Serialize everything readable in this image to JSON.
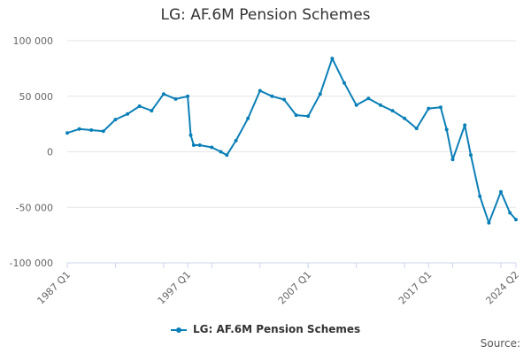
{
  "chart_data": {
    "type": "line",
    "title": "LG: AF.6M Pension Schemes",
    "xlabel": "",
    "ylabel": "",
    "ylim": [
      -100000,
      100000
    ],
    "y_ticks": [
      100000,
      50000,
      0,
      -50000,
      -100000
    ],
    "y_tick_labels": [
      "100 000",
      "50 000",
      "0",
      "-50 000",
      "-100 000"
    ],
    "x_ticks": [
      "1987 Q1",
      "1997 Q1",
      "2007 Q1",
      "2017 Q1",
      "2024 Q2"
    ],
    "grid": true,
    "legend": "bottom-center",
    "color": "#0a7fb7",
    "series": [
      {
        "name": "LG: AF.6M Pension Schemes",
        "points": [
          [
            "1987 Q1",
            17000
          ],
          [
            "1988 Q1",
            20500
          ],
          [
            "1989 Q1",
            19500
          ],
          [
            "1990 Q1",
            18500
          ],
          [
            "1991 Q1",
            29000
          ],
          [
            "1992 Q1",
            34000
          ],
          [
            "1993 Q1",
            41000
          ],
          [
            "1994 Q1",
            37000
          ],
          [
            "1995 Q1",
            52000
          ],
          [
            "1996 Q1",
            47500
          ],
          [
            "1997 Q1",
            50000
          ],
          [
            "1997 Q2",
            15000
          ],
          [
            "1997 Q3",
            6000
          ],
          [
            "1998 Q1",
            6000
          ],
          [
            "1999 Q1",
            4000
          ],
          [
            "1999 Q4",
            0
          ],
          [
            "2000 Q2",
            -3000
          ],
          [
            "2001 Q1",
            10000
          ],
          [
            "2002 Q1",
            30000
          ],
          [
            "2003 Q1",
            55000
          ],
          [
            "2004 Q1",
            50000
          ],
          [
            "2005 Q1",
            47000
          ],
          [
            "2006 Q1",
            33000
          ],
          [
            "2007 Q1",
            32000
          ],
          [
            "2008 Q1",
            52000
          ],
          [
            "2009 Q1",
            84000
          ],
          [
            "2010 Q1",
            62000
          ],
          [
            "2011 Q1",
            42000
          ],
          [
            "2012 Q1",
            48000
          ],
          [
            "2013 Q1",
            42000
          ],
          [
            "2014 Q1",
            37000
          ],
          [
            "2015 Q1",
            30000
          ],
          [
            "2016 Q1",
            21000
          ],
          [
            "2017 Q1",
            39000
          ],
          [
            "2018 Q1",
            40000
          ],
          [
            "2018 Q3",
            20000
          ],
          [
            "2019 Q1",
            -7000
          ],
          [
            "2020 Q1",
            24000
          ],
          [
            "2020 Q3",
            -3000
          ],
          [
            "2021 Q2",
            -40000
          ],
          [
            "2022 Q1",
            -64000
          ],
          [
            "2023 Q1",
            -36000
          ],
          [
            "2023 Q4",
            -55000
          ],
          [
            "2024 Q2",
            -61000
          ]
        ]
      }
    ]
  },
  "legend": {
    "label": "LG: AF.6M Pension Schemes"
  },
  "footer": {
    "source": "Source:"
  }
}
